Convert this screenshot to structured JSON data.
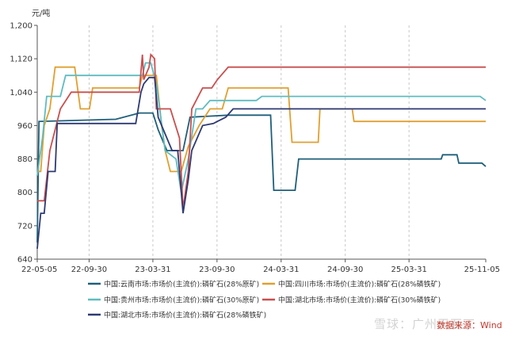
{
  "chart_data": {
    "type": "line",
    "ylabel": "元/吨",
    "ylim": [
      640,
      1200
    ],
    "yticks": [
      "640",
      "720",
      "800",
      "880",
      "960",
      "1,040",
      "1,120",
      "1,200"
    ],
    "ytick_values": [
      640,
      720,
      800,
      880,
      960,
      1040,
      1120,
      1200
    ],
    "xlim": [
      "2022-05-05",
      "2025-11-05"
    ],
    "xticks": [
      "22-05-05",
      "22-09-30",
      "23-03-31",
      "23-09-30",
      "24-03-31",
      "24-09-30",
      "25-03-31",
      "25-11-05"
    ],
    "xtick_dates": [
      "2022-05-05",
      "2022-09-30",
      "2023-03-31",
      "2023-09-30",
      "2024-03-31",
      "2024-09-30",
      "2025-03-31",
      "2025-11-05"
    ],
    "grid": "vertical",
    "legend_position": "bottom",
    "series": [
      {
        "name": "中国:云南市场:市场价(主流价):磷矿石(28%原矿)",
        "color": "#1f5f7a",
        "points": [
          [
            "2022-05-05",
            680
          ],
          [
            "2022-05-10",
            970
          ],
          [
            "2022-12-15",
            975
          ],
          [
            "2023-02-20",
            990
          ],
          [
            "2023-03-31",
            990
          ],
          [
            "2023-04-15",
            950
          ],
          [
            "2023-05-10",
            900
          ],
          [
            "2023-06-25",
            900
          ],
          [
            "2023-07-15",
            980
          ],
          [
            "2023-11-01",
            985
          ],
          [
            "2024-03-01",
            985
          ],
          [
            "2024-03-10",
            805
          ],
          [
            "2024-05-10",
            805
          ],
          [
            "2024-05-20",
            880
          ],
          [
            "2025-04-20",
            880
          ],
          [
            "2025-07-01",
            880
          ],
          [
            "2025-07-05",
            890
          ],
          [
            "2025-08-15",
            890
          ],
          [
            "2025-08-20",
            870
          ],
          [
            "2025-10-25",
            870
          ],
          [
            "2025-11-05",
            862
          ]
        ]
      },
      {
        "name": "中国:四川市场:市场价(主流价):磷矿石(28%磷铁矿)",
        "color": "#e0a030",
        "points": [
          [
            "2022-05-05",
            850
          ],
          [
            "2022-05-15",
            850
          ],
          [
            "2022-05-25",
            960
          ],
          [
            "2022-06-10",
            1000
          ],
          [
            "2022-06-25",
            1100
          ],
          [
            "2022-08-20",
            1100
          ],
          [
            "2022-09-05",
            1000
          ],
          [
            "2022-10-01",
            1000
          ],
          [
            "2022-10-10",
            1050
          ],
          [
            "2023-02-20",
            1050
          ],
          [
            "2023-03-01",
            1080
          ],
          [
            "2023-04-10",
            1080
          ],
          [
            "2023-04-25",
            960
          ],
          [
            "2023-05-05",
            900
          ],
          [
            "2023-05-20",
            850
          ],
          [
            "2023-06-20",
            850
          ],
          [
            "2023-07-10",
            910
          ],
          [
            "2023-08-10",
            960
          ],
          [
            "2023-09-10",
            1000
          ],
          [
            "2023-10-15",
            1000
          ],
          [
            "2023-11-01",
            1050
          ],
          [
            "2024-04-20",
            1050
          ],
          [
            "2024-05-01",
            920
          ],
          [
            "2024-07-15",
            920
          ],
          [
            "2024-07-20",
            1000
          ],
          [
            "2024-10-20",
            1000
          ],
          [
            "2024-10-25",
            970
          ],
          [
            "2025-11-05",
            970
          ]
        ]
      },
      {
        "name": "中国:贵州市场:市场价(主流价):磷矿石(30%原矿)",
        "color": "#5fbcc0",
        "points": [
          [
            "2022-05-05",
            840
          ],
          [
            "2022-05-20",
            930
          ],
          [
            "2022-06-01",
            1030
          ],
          [
            "2022-07-10",
            1030
          ],
          [
            "2022-07-25",
            1080
          ],
          [
            "2023-03-01",
            1080
          ],
          [
            "2023-03-10",
            1110
          ],
          [
            "2023-03-25",
            1110
          ],
          [
            "2023-04-10",
            1060
          ],
          [
            "2023-05-05",
            900
          ],
          [
            "2023-06-05",
            880
          ],
          [
            "2023-06-20",
            800
          ],
          [
            "2023-07-10",
            880
          ],
          [
            "2023-08-01",
            1000
          ],
          [
            "2023-08-20",
            1000
          ],
          [
            "2023-09-10",
            1020
          ],
          [
            "2024-01-20",
            1020
          ],
          [
            "2024-02-05",
            1030
          ],
          [
            "2025-10-20",
            1030
          ],
          [
            "2025-11-05",
            1020
          ]
        ]
      },
      {
        "name": "中国:湖北市场:市场价(主流价):磷矿石(30%磷铁矿)",
        "color": "#c94f4f",
        "points": [
          [
            "2022-05-05",
            780
          ],
          [
            "2022-05-25",
            780
          ],
          [
            "2022-06-10",
            900
          ],
          [
            "2022-07-10",
            1000
          ],
          [
            "2022-08-10",
            1040
          ],
          [
            "2023-02-20",
            1040
          ],
          [
            "2023-03-01",
            1130
          ],
          [
            "2023-03-05",
            1070
          ],
          [
            "2023-03-20",
            1100
          ],
          [
            "2023-03-25",
            1130
          ],
          [
            "2023-04-05",
            1120
          ],
          [
            "2023-04-10",
            1000
          ],
          [
            "2023-05-20",
            1000
          ],
          [
            "2023-06-15",
            930
          ],
          [
            "2023-06-25",
            760
          ],
          [
            "2023-07-10",
            850
          ],
          [
            "2023-07-20",
            1000
          ],
          [
            "2023-08-20",
            1050
          ],
          [
            "2023-09-15",
            1050
          ],
          [
            "2023-10-01",
            1070
          ],
          [
            "2023-11-01",
            1100
          ],
          [
            "2025-11-05",
            1100
          ]
        ]
      },
      {
        "name": "中国:湖北市场:市场价(主流价):磷矿石(28%磷铁矿)",
        "color": "#2e3a73",
        "points": [
          [
            "2022-05-05",
            665
          ],
          [
            "2022-05-15",
            750
          ],
          [
            "2022-05-25",
            750
          ],
          [
            "2022-06-05",
            850
          ],
          [
            "2022-06-25",
            850
          ],
          [
            "2022-07-01",
            965
          ],
          [
            "2023-02-10",
            965
          ],
          [
            "2023-02-25",
            1040
          ],
          [
            "2023-03-05",
            1060
          ],
          [
            "2023-03-20",
            1075
          ],
          [
            "2023-04-05",
            1075
          ],
          [
            "2023-04-15",
            980
          ],
          [
            "2023-05-05",
            940
          ],
          [
            "2023-05-25",
            900
          ],
          [
            "2023-06-10",
            900
          ],
          [
            "2023-06-25",
            750
          ],
          [
            "2023-07-10",
            830
          ],
          [
            "2023-07-20",
            900
          ],
          [
            "2023-08-20",
            960
          ],
          [
            "2023-09-20",
            965
          ],
          [
            "2023-10-01",
            970
          ],
          [
            "2023-10-25",
            980
          ],
          [
            "2023-11-15",
            1000
          ],
          [
            "2025-11-05",
            1000
          ]
        ]
      }
    ]
  },
  "source_note": "数据来源：Wind",
  "watermark": "雪球：广州天石丁"
}
